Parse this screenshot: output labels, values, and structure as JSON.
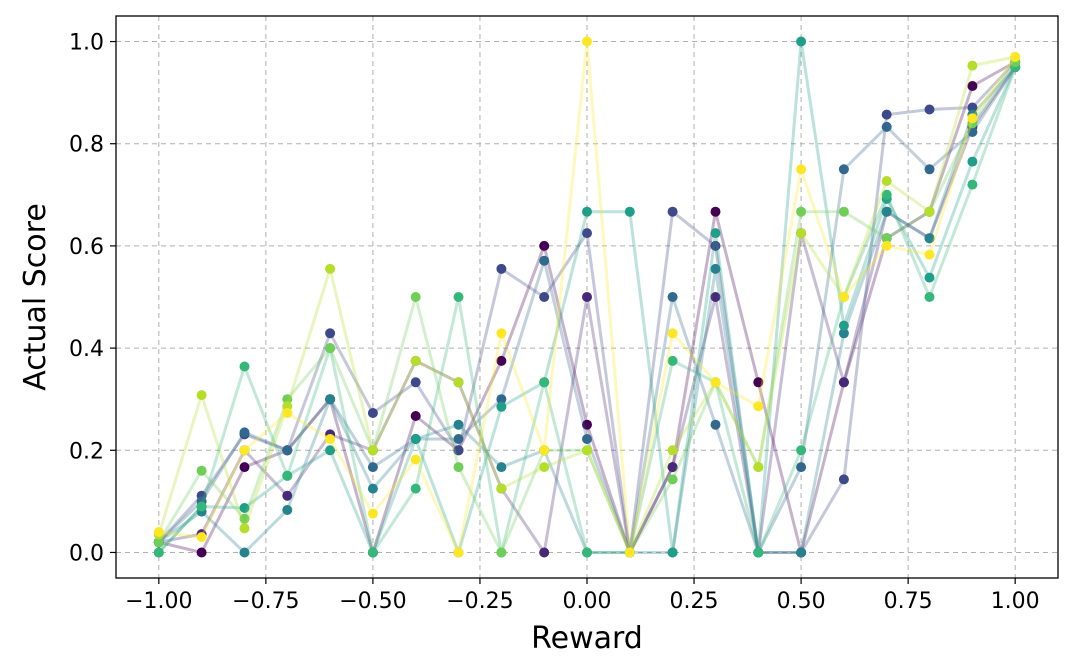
{
  "chart_data": {
    "type": "line",
    "title": "",
    "xlabel": "Reward",
    "ylabel": "Actual Score",
    "xlim": [
      -1.1,
      1.1
    ],
    "ylim": [
      -0.05,
      1.05
    ],
    "xticks": [
      -1.0,
      -0.75,
      -0.5,
      -0.25,
      0.0,
      0.25,
      0.5,
      0.75,
      1.0
    ],
    "xtick_labels": [
      "−1.00",
      "−0.75",
      "−0.50",
      "−0.25",
      "0.00",
      "0.25",
      "0.50",
      "0.75",
      "1.00"
    ],
    "yticks": [
      0.0,
      0.2,
      0.4,
      0.6,
      0.8,
      1.0
    ],
    "ytick_labels": [
      "0.0",
      "0.2",
      "0.4",
      "0.6",
      "0.8",
      "1.0"
    ],
    "grid": true,
    "line_opacity": 0.3,
    "x": [
      -1.0,
      -0.9,
      -0.8,
      -0.7,
      -0.6,
      -0.5,
      -0.4,
      -0.3,
      -0.2,
      -0.1,
      0.0,
      0.1,
      0.2,
      0.3,
      0.4,
      0.5,
      0.6,
      0.7,
      0.8,
      0.9,
      1.0
    ],
    "series": [
      {
        "color": "#440154",
        "values": [
          0.02,
          0.0,
          0.167,
          0.2,
          0.3,
          0.0,
          0.267,
          0.2,
          0.375,
          0.6,
          0.25,
          0.0,
          0.167,
          0.667,
          0.333,
          0.0,
          0.333,
          0.615,
          0.667,
          0.913,
          0.96
        ]
      },
      {
        "color": "#482878",
        "values": [
          0.02,
          0.036,
          0.2,
          0.111,
          0.231,
          0.2,
          0.375,
          0.333,
          0.125,
          0.0,
          0.5,
          0.0,
          0.167,
          0.5,
          0.0,
          0.625,
          0.333,
          0.667,
          0.615,
          0.833,
          0.95
        ]
      },
      {
        "color": "#3e4989",
        "values": [
          0.02,
          0.111,
          0.231,
          0.2,
          0.429,
          0.273,
          0.333,
          0.2,
          0.555,
          0.5,
          0.625,
          0.0,
          0.667,
          0.6,
          0.0,
          0.0,
          0.143,
          0.857,
          0.867,
          0.871,
          0.96
        ]
      },
      {
        "color": "#31688e",
        "values": [
          0.02,
          0.1,
          0.235,
          0.2,
          0.3,
          0.167,
          0.222,
          0.222,
          0.3,
          0.571,
          0.222,
          0.0,
          0.5,
          0.25,
          0.0,
          0.167,
          0.75,
          0.833,
          0.75,
          0.823,
          0.95
        ]
      },
      {
        "color": "#26828e",
        "values": [
          0.02,
          0.08,
          0.0,
          0.083,
          0.3,
          0.125,
          0.222,
          0.25,
          0.167,
          0.2,
          0.0,
          0.0,
          0.0,
          0.555,
          0.0,
          0.0,
          0.429,
          0.667,
          0.615,
          0.857,
          0.95
        ]
      },
      {
        "color": "#1f9e89",
        "values": [
          0.0,
          0.09,
          0.087,
          0.15,
          0.2,
          0.0,
          0.222,
          0.0,
          0.285,
          0.333,
          0.667,
          0.667,
          0.0,
          0.625,
          0.0,
          1.0,
          0.444,
          0.692,
          0.538,
          0.765,
          0.95
        ]
      },
      {
        "color": "#35b779",
        "values": [
          0.0,
          0.09,
          0.364,
          0.15,
          0.4,
          0.0,
          0.125,
          0.5,
          0.0,
          0.333,
          0.0,
          0.0,
          0.375,
          0.333,
          0.0,
          0.2,
          0.5,
          0.7,
          0.5,
          0.72,
          0.95
        ]
      },
      {
        "color": "#6ece58",
        "values": [
          0.02,
          0.16,
          0.066,
          0.3,
          0.4,
          0.2,
          0.5,
          0.167,
          0.0,
          0.2,
          0.2,
          0.0,
          0.143,
          0.333,
          0.167,
          0.667,
          0.667,
          0.615,
          0.667,
          0.84,
          0.96
        ]
      },
      {
        "color": "#b5de2b",
        "values": [
          0.035,
          0.308,
          0.047,
          0.286,
          0.555,
          0.2,
          0.375,
          0.333,
          0.125,
          0.167,
          0.2,
          0.0,
          0.2,
          0.333,
          0.167,
          0.625,
          0.5,
          0.727,
          0.667,
          0.953,
          0.97
        ]
      },
      {
        "color": "#fde725",
        "values": [
          0.04,
          0.03,
          0.2,
          0.273,
          0.222,
          0.076,
          0.182,
          0.0,
          0.429,
          0.2,
          1.0,
          0.0,
          0.429,
          0.333,
          0.286,
          0.75,
          0.5,
          0.6,
          0.583,
          0.85,
          0.97
        ]
      }
    ]
  }
}
